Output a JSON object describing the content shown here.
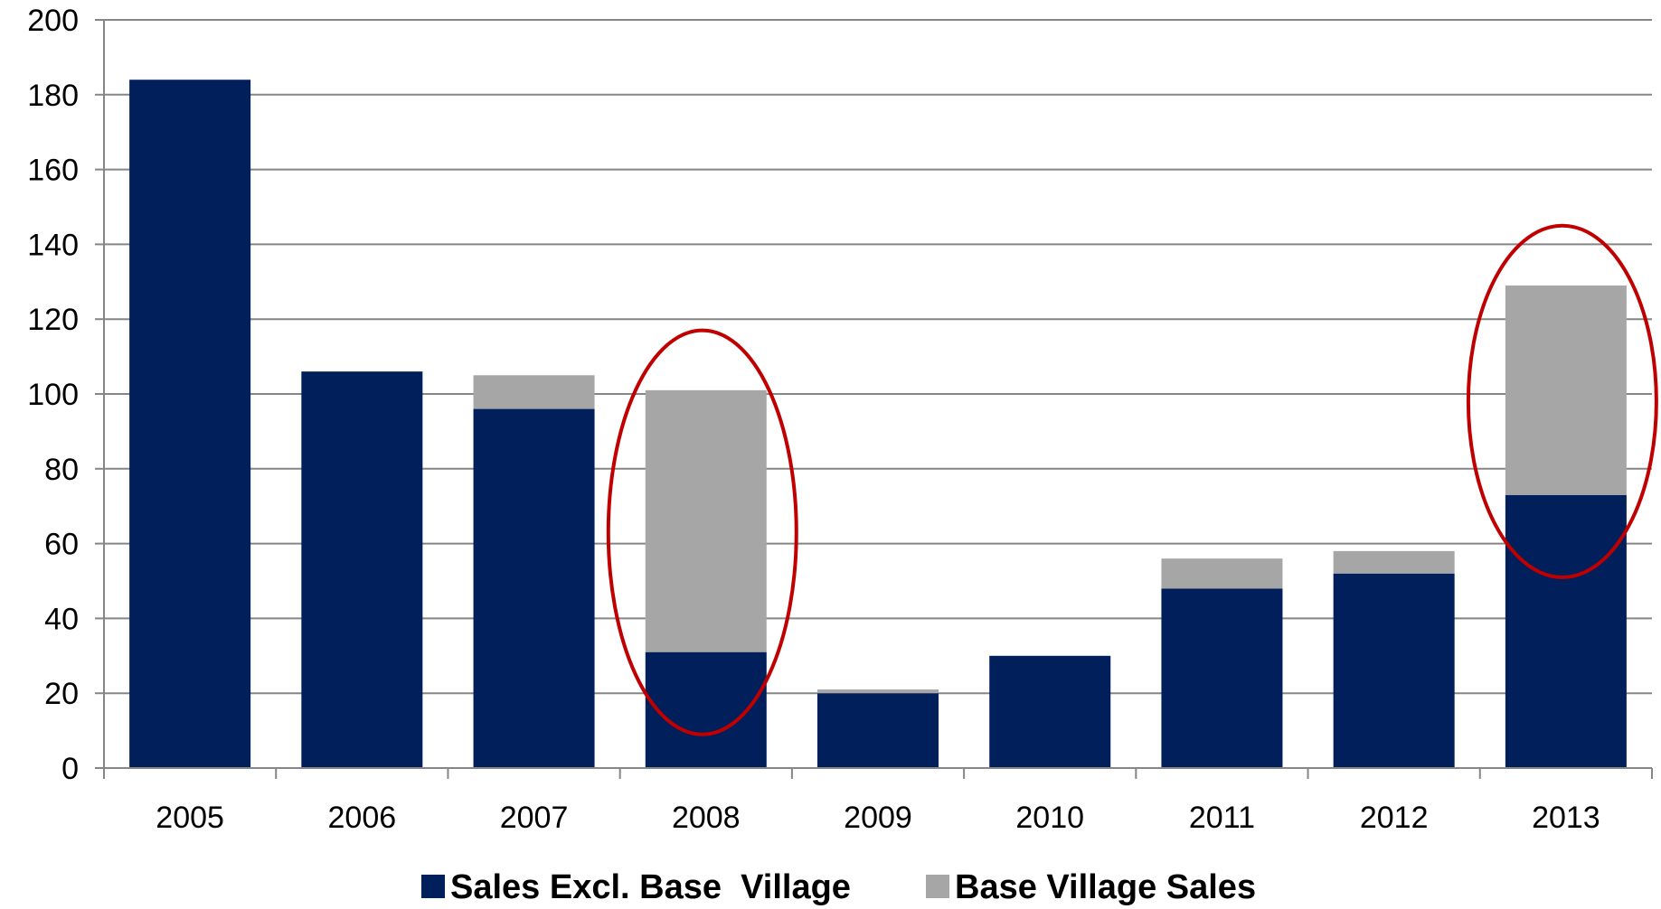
{
  "chart_data": {
    "type": "bar",
    "stacked": true,
    "categories": [
      "2005",
      "2006",
      "2007",
      "2008",
      "2009",
      "2010",
      "2011",
      "2012",
      "2013"
    ],
    "series": [
      {
        "name": "Sales Excl. Base  Village",
        "color": "#001f5b",
        "values": [
          184,
          106,
          96,
          31,
          20,
          30,
          48,
          52,
          73
        ]
      },
      {
        "name": "Base Village Sales",
        "color": "#a6a6a6",
        "values": [
          0,
          0,
          9,
          70,
          1,
          0,
          8,
          6,
          56
        ]
      }
    ],
    "ylim": [
      0,
      200
    ],
    "yticks": [
      0,
      20,
      40,
      60,
      80,
      100,
      120,
      140,
      160,
      180,
      200
    ],
    "grid": true,
    "legend_position": "bottom",
    "highlight_circles": {
      "categories": [
        "2008",
        "2013"
      ],
      "color": "#c00000"
    }
  }
}
